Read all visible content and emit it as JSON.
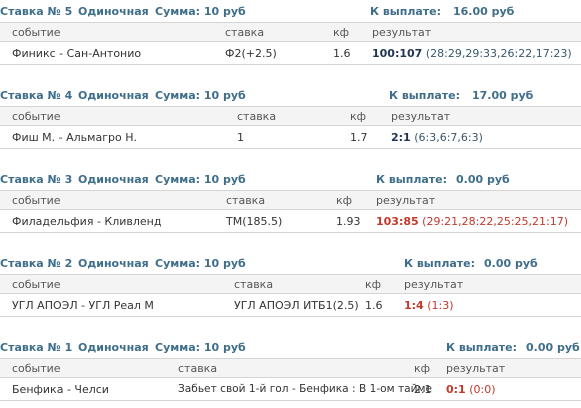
{
  "colors": {
    "header_text": "#3f6e8a",
    "win": "#1f3550",
    "loss": "#c0392b"
  },
  "bets": [
    {
      "title": "Ставка № 5",
      "type": "Одиночная",
      "sum": "Сумма: 10 руб",
      "payout_label": "К выплате:",
      "payout_value": "16.00 руб",
      "columns": {
        "event": "событие",
        "bet": "ставка",
        "coef": "кф",
        "result": "результат"
      },
      "row": {
        "event": "Финикс - Сан-Антонио",
        "bet": "Ф2(+2.5)",
        "coef": "1.6",
        "result_main": "100:107",
        "result_detail": "(28:29,29:33,26:22,17:23)",
        "outcome": "win"
      }
    },
    {
      "title": "Ставка № 4",
      "type": "Одиночная",
      "sum": "Сумма: 10 руб",
      "payout_label": "К выплате:",
      "payout_value": "17.00 руб",
      "columns": {
        "event": "событие",
        "bet": "ставка",
        "coef": "кф",
        "result": "результат"
      },
      "row": {
        "event": "Фиш М. - Альмагро Н.",
        "bet": "1",
        "coef": "1.7",
        "result_main": "2:1",
        "result_detail": "(6:3,6:7,6:3)",
        "outcome": "win"
      }
    },
    {
      "title": "Ставка № 3",
      "type": "Одиночная",
      "sum": "Сумма: 10 руб",
      "payout_label": "К выплате:",
      "payout_value": "0.00 руб",
      "columns": {
        "event": "событие",
        "bet": "ставка",
        "coef": "кф",
        "result": "результат"
      },
      "row": {
        "event": "Филадельфия - Кливленд",
        "bet": "ТМ(185.5)",
        "coef": "1.93",
        "result_main": "103:85",
        "result_detail": "(29:21,28:22,25:25,21:17)",
        "outcome": "loss"
      }
    },
    {
      "title": "Ставка № 2",
      "type": "Одиночная",
      "sum": "Сумма: 10 руб",
      "payout_label": "К выплате:",
      "payout_value": "0.00 руб",
      "columns": {
        "event": "событие",
        "bet": "ставка",
        "coef": "кф",
        "result": "результат"
      },
      "row": {
        "event": "УГЛ АПОЭЛ - УГЛ Реал М",
        "bet": "УГЛ АПОЭЛ ИТБ1(2.5)",
        "coef": "1.6",
        "result_main": "1:4",
        "result_detail": "(1:3)",
        "outcome": "loss"
      }
    },
    {
      "title": "Ставка № 1",
      "type": "Одиночная",
      "sum": "Сумма: 10 руб",
      "payout_label": "К выплате:",
      "payout_value": "0.00 руб",
      "columns": {
        "event": "событие",
        "bet": "ставка",
        "coef": "кф",
        "result": "результат"
      },
      "row": {
        "event": "Бенфика - Челси",
        "bet": "Забьет свой 1-й гол - Бенфика : В 1-ом тайме",
        "coef": "2.1",
        "result_main": "0:1",
        "result_detail": "(0:0)",
        "outcome": "loss"
      }
    }
  ]
}
